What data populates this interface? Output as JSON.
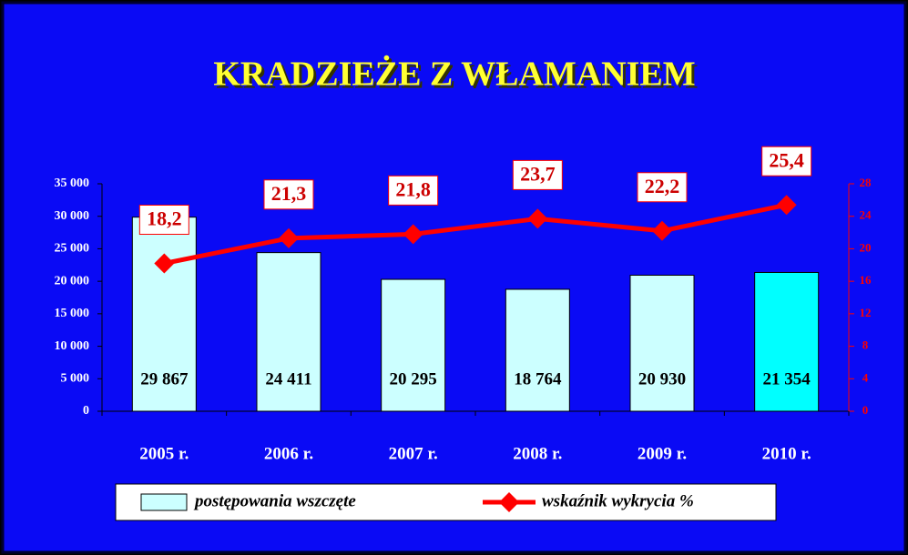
{
  "chart_data": {
    "type": "bar",
    "title": "KRADZIEŻE Z WŁAMANIEM",
    "categories": [
      "2005 r.",
      "2006 r.",
      "2007 r.",
      "2008 r.",
      "2009 r.",
      "2010 r."
    ],
    "series": [
      {
        "name": "postępowania wszczęte",
        "type": "bar",
        "color": "#ccffff",
        "colors": [
          "#ccffff",
          "#ccffff",
          "#ccffff",
          "#ccffff",
          "#ccffff",
          "#00ffff"
        ],
        "values": [
          29867,
          24411,
          20295,
          18764,
          20930,
          21354
        ],
        "value_labels": [
          "29 867",
          "24 411",
          "20 295",
          "18 764",
          "20 930",
          "21 354"
        ]
      },
      {
        "name": "wskaźnik wykrycia %",
        "type": "line",
        "axis": "y2",
        "color": "#ff0000",
        "values": [
          18.2,
          21.3,
          21.8,
          23.7,
          22.2,
          25.4
        ],
        "value_labels": [
          "18,2",
          "21,3",
          "21,8",
          "23,7",
          "22,2",
          "25,4"
        ]
      }
    ],
    "ylim": [
      0,
      35000
    ],
    "yticks": [
      0,
      {
        "value": 5000,
        "label": "5 000"
      },
      {
        "value": 10000,
        "label": "10 000"
      },
      {
        "value": 15000,
        "label": "15 000"
      },
      {
        "value": 20000,
        "label": "20 000"
      },
      {
        "value": 25000,
        "label": "25 000"
      },
      {
        "value": 30000,
        "label": "30 000"
      },
      {
        "value": 35000,
        "label": "35 000"
      }
    ],
    "y2lim": [
      0,
      28
    ],
    "y2ticks": [
      0,
      4,
      8,
      12,
      16,
      20,
      24,
      28
    ],
    "legend": "bottom"
  }
}
